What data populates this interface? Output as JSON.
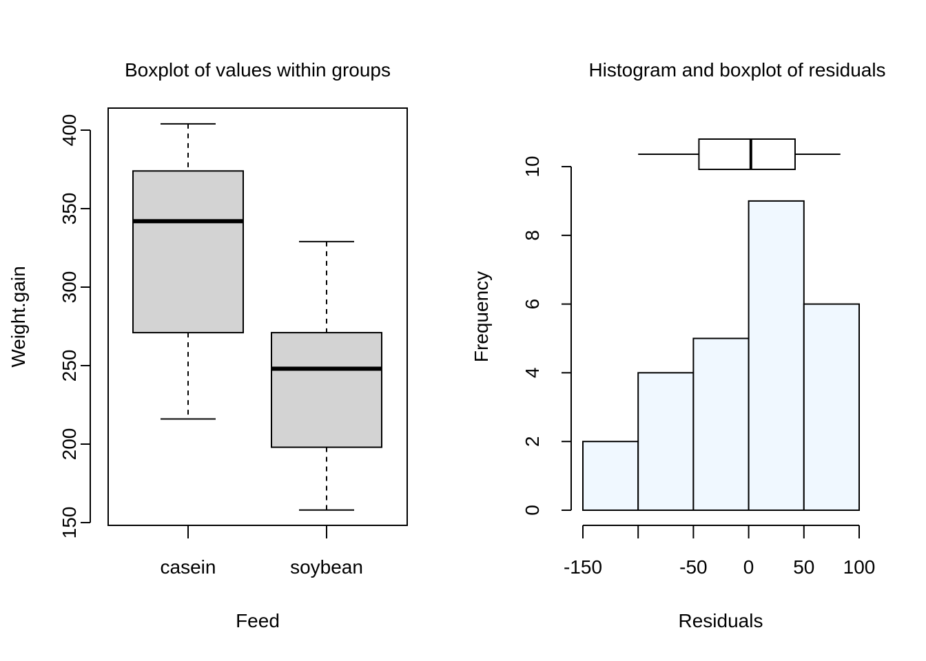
{
  "chart_data": [
    {
      "type": "boxplot",
      "title": "Boxplot of values within groups",
      "xlabel": "Feed",
      "ylabel": "Weight.gain",
      "ylim": [
        150,
        405
      ],
      "yticks": [
        "150",
        "200",
        "250",
        "300",
        "350",
        "400"
      ],
      "grid": false,
      "box_fill": "#d3d3d3",
      "categories": [
        "casein",
        "soybean"
      ],
      "boxes": [
        {
          "name": "casein",
          "min": 216,
          "q1": 271,
          "median": 342,
          "q3": 374,
          "max": 404
        },
        {
          "name": "soybean",
          "min": 158,
          "q1": 198,
          "median": 248,
          "q3": 271,
          "max": 329
        }
      ]
    },
    {
      "type": "bar",
      "title": "Histogram and boxplot of residuals",
      "xlabel": "Residuals",
      "ylabel": "Frequency",
      "ylim": [
        0,
        10
      ],
      "yticks": [
        "0",
        "2",
        "4",
        "6",
        "8",
        "10"
      ],
      "xlim": [
        -150,
        100
      ],
      "xticks": [
        "-150",
        "-50",
        "0",
        "50",
        "100"
      ],
      "grid": false,
      "bar_fill": "#f0f8ff",
      "bins": [
        {
          "from": -150,
          "to": -100,
          "count": 2
        },
        {
          "from": -100,
          "to": -50,
          "count": 4
        },
        {
          "from": -50,
          "to": 0,
          "count": 5
        },
        {
          "from": 0,
          "to": 50,
          "count": 9
        },
        {
          "from": 50,
          "to": 100,
          "count": 6
        }
      ],
      "residual_boxplot": {
        "min": -100,
        "q1": -45,
        "median": 2,
        "q3": 42,
        "max": 83
      }
    }
  ]
}
